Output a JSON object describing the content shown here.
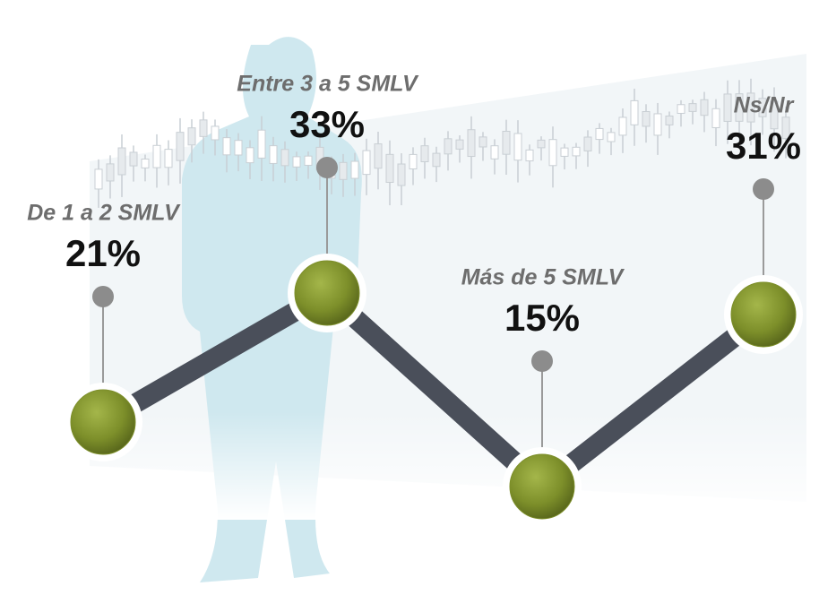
{
  "chart_data": {
    "type": "line",
    "categories": [
      "De 1 a 2 SMLV",
      "Entre 3 a 5 SMLV",
      "Más de 5 SMLV",
      "Ns/Nr"
    ],
    "values": [
      21,
      33,
      15,
      31
    ],
    "value_labels": [
      "21%",
      "33%",
      "15%",
      "31%"
    ],
    "color": "#4a4f5a",
    "marker_color": "#7d8f2a"
  }
}
